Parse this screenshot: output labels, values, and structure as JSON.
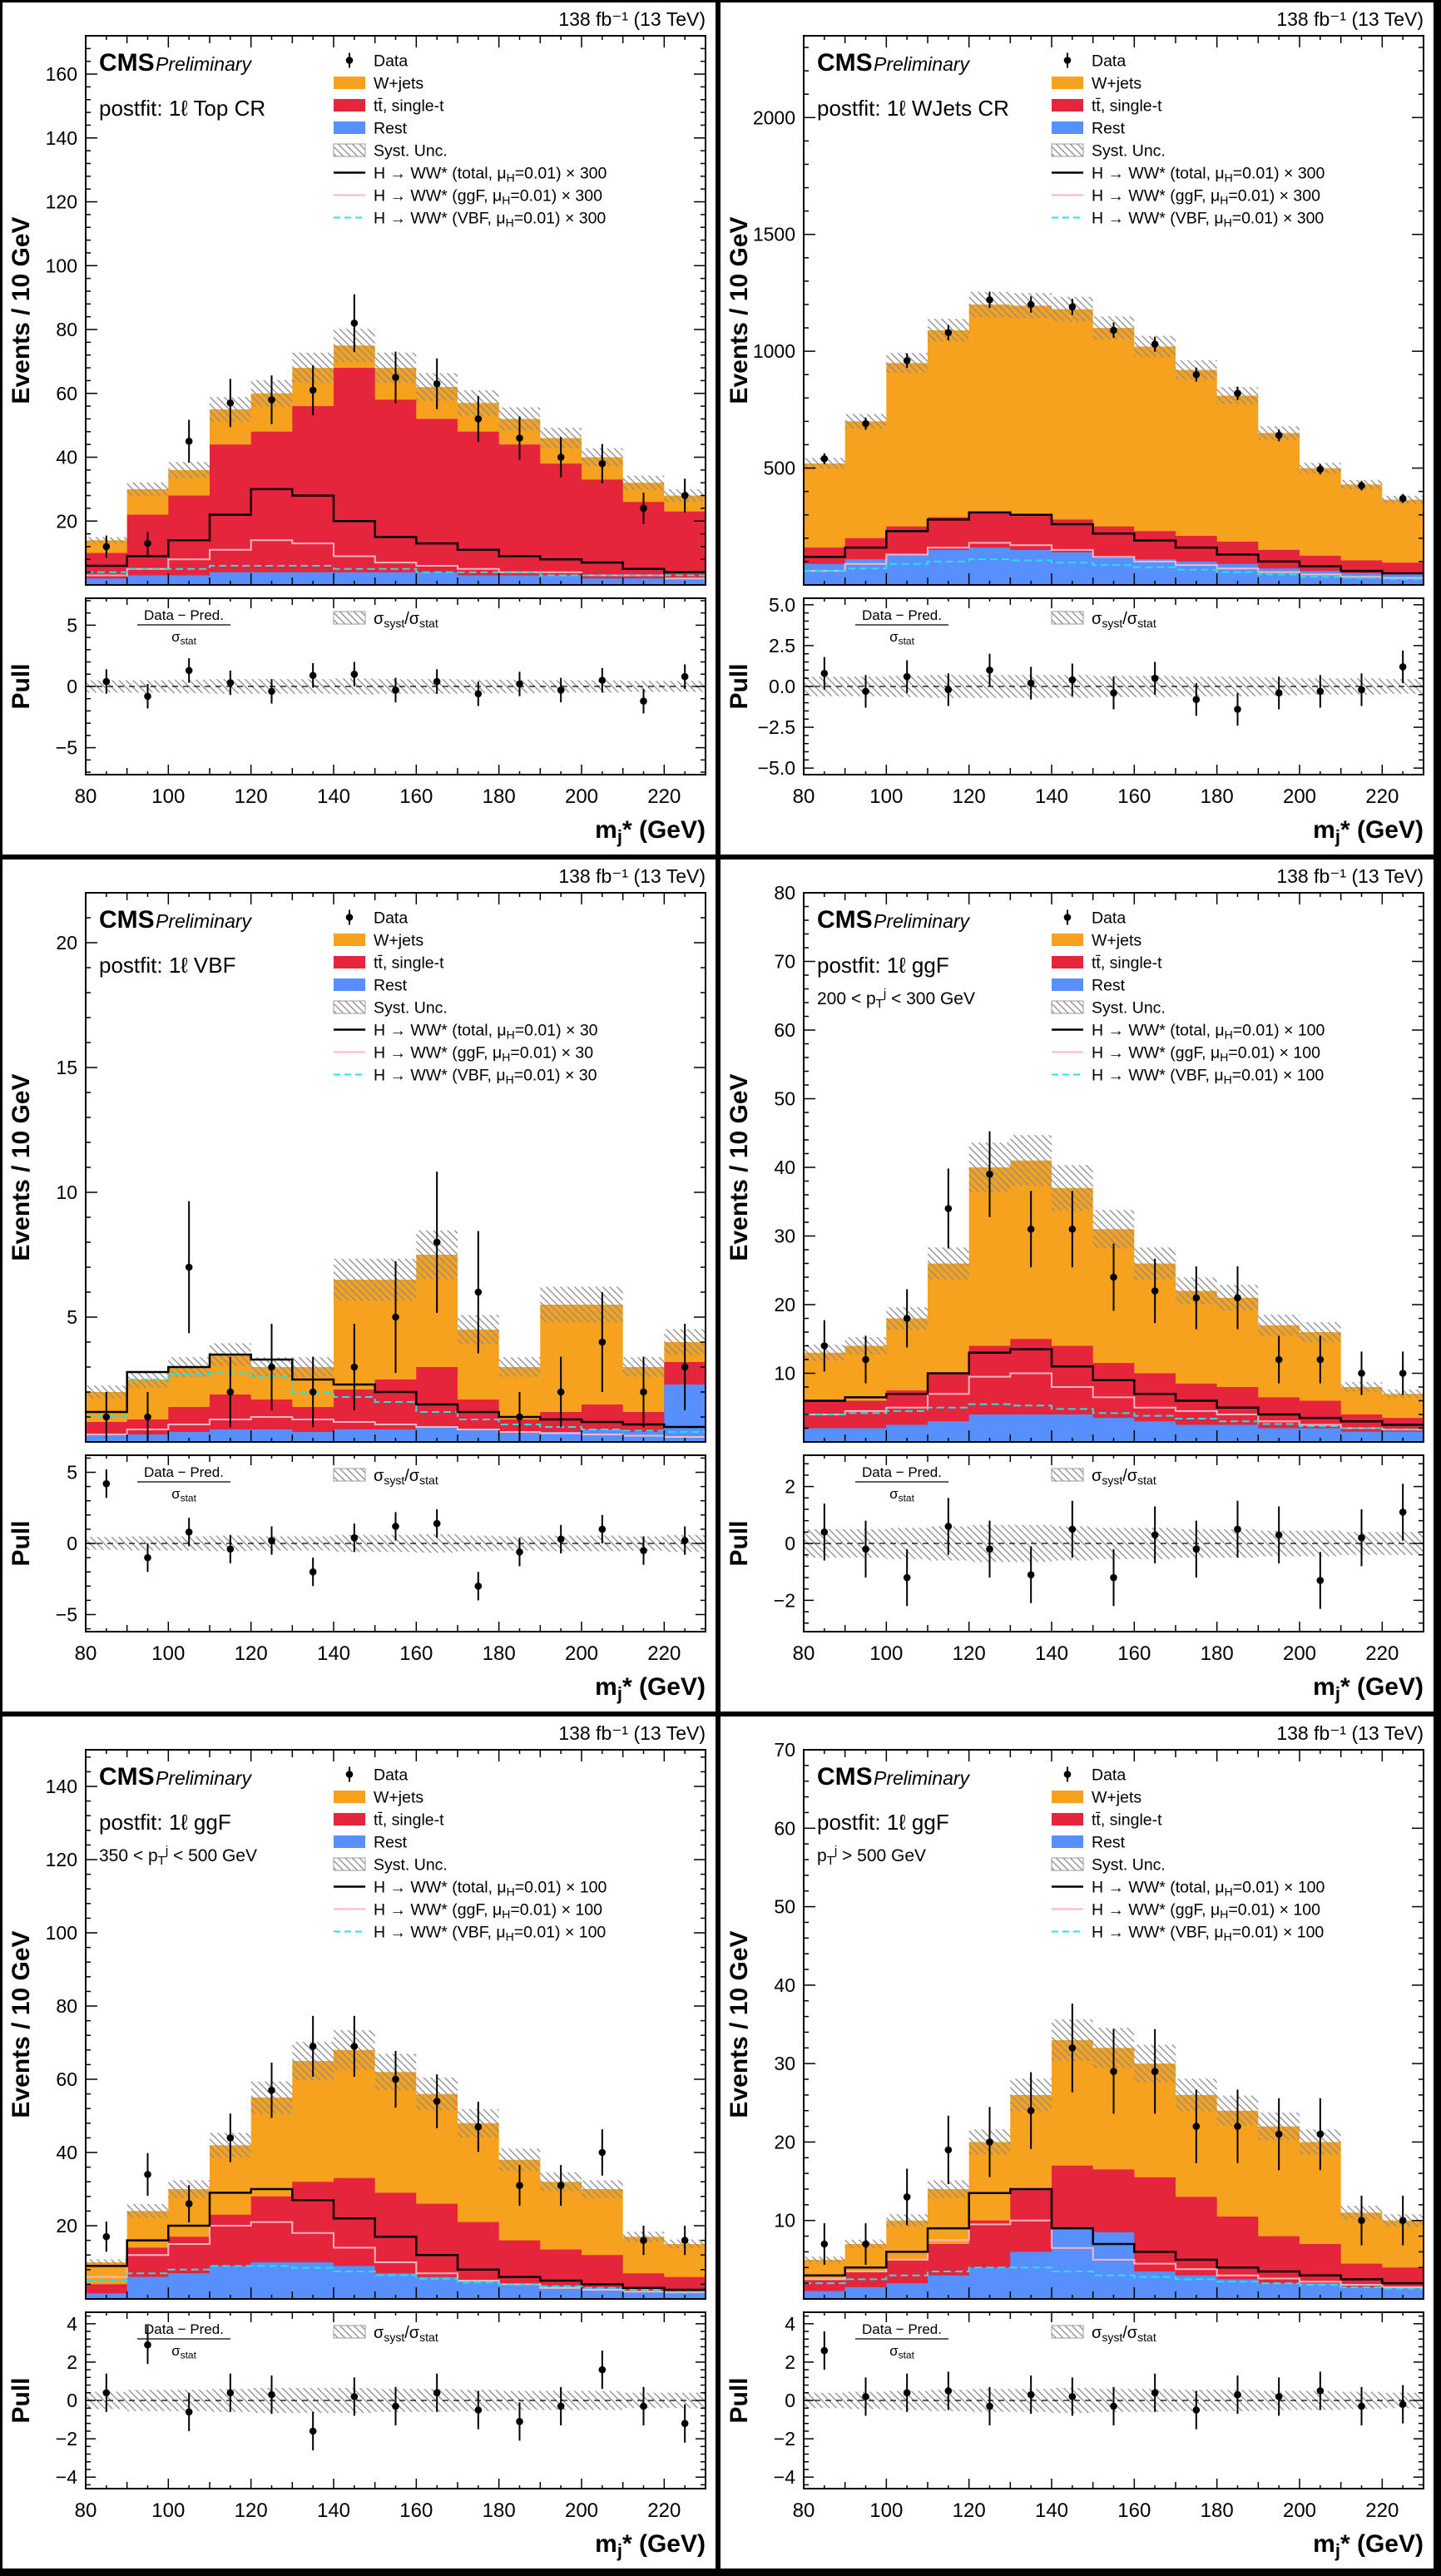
{
  "common": {
    "lumi": "138 fb⁻¹ (13 TeV)",
    "cms": "CMS",
    "preliminary": "Preliminary",
    "xlabel": "m~j~* (GeV)",
    "ylabel": "Events / 10 GeV",
    "pull_axis_label": "Pull",
    "pull_formula_numerator": "Data − Pred.",
    "pull_formula_denominator": "σ~stat~",
    "pull_band_label": "σ~syst~/σ~stat~",
    "legend_labels": {
      "data": "Data",
      "wjets": "W+jets",
      "top": "tt̄, single-t",
      "rest": "Rest",
      "syst": "Syst. Unc."
    },
    "colors": {
      "wjets": "#F7A21F",
      "top": "#E4253C",
      "rest": "#5790FC",
      "signal_total": "#000000",
      "signal_ggf": "#FFB5C2",
      "signal_vbf": "#24E3E3",
      "hatch": "#8A8A8A"
    },
    "x": {
      "min": 80,
      "max": 230,
      "bin_width": 10,
      "ticks": [
        80,
        100,
        120,
        140,
        160,
        180,
        200,
        220
      ]
    }
  },
  "chart_data": [
    {
      "type": "stacked-histogram-with-pull",
      "region_label": "postfit: 1ℓ Top CR",
      "sub_label": "",
      "ylim": [
        0,
        172
      ],
      "yticks": [
        20,
        40,
        60,
        80,
        100,
        120,
        140,
        160
      ],
      "pull_ylim": [
        -7.2,
        7.2
      ],
      "pull_yticks": [
        {
          "v": -5,
          "l": "−5"
        },
        {
          "v": 0,
          "l": "0"
        },
        {
          "v": 5,
          "l": "5"
        }
      ],
      "syst_frac": 0.07,
      "signal_legend": [
        "H → WW* (total, μ~H~=0.01) × 300",
        "H → WW* (ggF, μ~H~=0.01) × 300",
        "H → WW* (VBF, μ~H~=0.01) × 300"
      ],
      "stack": {
        "rest": [
          2,
          3,
          3,
          4,
          4,
          4,
          4,
          4,
          4,
          3,
          3,
          3,
          2,
          2,
          2
        ],
        "top": [
          8,
          19,
          25,
          40,
          44,
          52,
          64,
          54,
          48,
          45,
          41,
          35,
          31,
          24,
          21
        ],
        "wjets": [
          4,
          8,
          8,
          11,
          12,
          12,
          7,
          10,
          10,
          9,
          8,
          8,
          7,
          6,
          5
        ]
      },
      "signals": {
        "total": [
          6,
          9,
          14,
          22,
          30,
          28,
          20,
          15,
          13,
          11,
          9,
          8,
          7,
          5,
          4
        ],
        "ggf": [
          3,
          5,
          8,
          11,
          14,
          13,
          9,
          7,
          6,
          5,
          4,
          4,
          3,
          3,
          2
        ],
        "vbf": [
          4,
          5,
          5,
          6,
          6,
          6,
          5,
          5,
          4,
          4,
          4,
          3,
          3,
          3,
          3
        ]
      },
      "data_points": [
        12,
        13,
        45,
        57,
        58,
        61,
        82,
        65,
        63,
        52,
        46,
        40,
        38,
        24,
        28
      ],
      "pull": [
        0.4,
        -0.8,
        1.3,
        0.3,
        -0.4,
        0.9,
        1.0,
        -0.3,
        0.4,
        -0.6,
        0.2,
        -0.3,
        0.5,
        -1.2,
        0.8
      ],
      "pull_band": [
        0.5,
        0.5,
        0.55,
        0.6,
        0.6,
        0.6,
        0.65,
        0.6,
        0.6,
        0.55,
        0.55,
        0.5,
        0.5,
        0.45,
        0.45
      ]
    },
    {
      "type": "stacked-histogram-with-pull",
      "region_label": "postfit: 1ℓ WJets CR",
      "sub_label": "",
      "ylim": [
        0,
        2350
      ],
      "yticks": [
        500,
        1000,
        1500,
        2000
      ],
      "pull_ylim": [
        -5.4,
        5.4
      ],
      "pull_yticks": [
        {
          "v": -5,
          "l": "−5.0"
        },
        {
          "v": -2.5,
          "l": "−2.5"
        },
        {
          "v": 0,
          "l": "0.0"
        },
        {
          "v": 2.5,
          "l": "2.5"
        },
        {
          "v": 5,
          "l": "5.0"
        }
      ],
      "syst_frac": 0.045,
      "signal_legend": [
        "H → WW* (total, μ~H~=0.01) × 300",
        "H → WW* (ggF, μ~H~=0.01) × 300",
        "H → WW* (VBF, μ~H~=0.01) × 300"
      ],
      "stack": {
        "rest": [
          90,
          110,
          130,
          150,
          160,
          150,
          140,
          120,
          110,
          100,
          90,
          70,
          60,
          50,
          45
        ],
        "top": [
          70,
          90,
          120,
          140,
          150,
          145,
          140,
          130,
          120,
          110,
          95,
          80,
          65,
          55,
          50
        ],
        "wjets": [
          360,
          500,
          700,
          800,
          890,
          900,
          900,
          850,
          790,
          710,
          625,
          500,
          375,
          325,
          270
        ]
      },
      "signals": {
        "total": [
          120,
          160,
          230,
          280,
          310,
          300,
          260,
          220,
          190,
          160,
          130,
          100,
          80,
          60,
          50
        ],
        "ggf": [
          60,
          90,
          130,
          160,
          180,
          170,
          150,
          120,
          100,
          85,
          70,
          55,
          45,
          35,
          30
        ],
        "vbf": [
          60,
          70,
          90,
          100,
          110,
          105,
          95,
          85,
          75,
          65,
          55,
          45,
          35,
          30,
          25
        ]
      },
      "data_points": [
        540,
        690,
        960,
        1080,
        1220,
        1200,
        1190,
        1090,
        1030,
        900,
        820,
        640,
        495,
        425,
        370
      ],
      "pull": [
        0.8,
        -0.3,
        0.6,
        -0.2,
        1.0,
        0.2,
        0.4,
        -0.4,
        0.5,
        -0.8,
        -1.4,
        -0.4,
        -0.3,
        -0.2,
        1.2
      ],
      "pull_band": [
        0.6,
        0.6,
        0.65,
        0.7,
        0.7,
        0.7,
        0.7,
        0.65,
        0.65,
        0.6,
        0.6,
        0.55,
        0.5,
        0.5,
        0.45
      ]
    },
    {
      "type": "stacked-histogram-with-pull",
      "region_label": "postfit: 1ℓ VBF",
      "sub_label": "",
      "ylim": [
        0,
        22
      ],
      "yticks": [
        5,
        10,
        15,
        20
      ],
      "pull_ylim": [
        -6.2,
        6.2
      ],
      "pull_yticks": [
        {
          "v": -5,
          "l": "−5"
        },
        {
          "v": 0,
          "l": "0"
        },
        {
          "v": 5,
          "l": "5"
        }
      ],
      "syst_frac": 0.13,
      "signal_legend": [
        "H → WW* (total, μ~H~=0.01) × 30",
        "H → WW* (ggF, μ~H~=0.01) × 30",
        "H → WW* (VBF, μ~H~=0.01) × 30"
      ],
      "stack": {
        "rest": [
          0.3,
          0.3,
          0.4,
          0.5,
          0.5,
          0.4,
          0.5,
          0.5,
          0.6,
          0.5,
          0.4,
          0.4,
          0.5,
          0.4,
          2.3
        ],
        "top": [
          0.5,
          0.6,
          1.0,
          1.4,
          1.2,
          1.0,
          1.6,
          2.0,
          2.4,
          1.2,
          0.5,
          0.8,
          1.0,
          0.8,
          0.9
        ],
        "wjets": [
          1.2,
          1.6,
          1.6,
          1.6,
          1.3,
          1.6,
          4.4,
          4.0,
          4.5,
          2.8,
          2.1,
          4.3,
          4.0,
          1.8,
          0.8
        ]
      },
      "signals": {
        "total": [
          1.2,
          2.8,
          3.0,
          3.5,
          3.3,
          2.5,
          2.3,
          2.0,
          1.5,
          1.2,
          1.0,
          0.9,
          0.8,
          0.7,
          0.6
        ],
        "ggf": [
          0.3,
          0.5,
          0.7,
          0.9,
          1.0,
          0.9,
          0.8,
          0.7,
          0.6,
          0.5,
          0.4,
          0.35,
          0.3,
          0.25,
          0.2
        ],
        "vbf": [
          1.0,
          2.5,
          2.7,
          2.8,
          2.6,
          2.0,
          1.8,
          1.6,
          1.2,
          0.9,
          0.7,
          0.6,
          0.5,
          0.45,
          0.4
        ]
      },
      "data_points": [
        1,
        1,
        7,
        2,
        3,
        2,
        3,
        5,
        8,
        6,
        1,
        2,
        4,
        2,
        3
      ],
      "pull": [
        4.2,
        -1.0,
        0.8,
        -0.4,
        0.2,
        -2.0,
        0.4,
        1.2,
        1.4,
        -3.0,
        -0.6,
        0.3,
        1.0,
        -0.5,
        0.2
      ],
      "pull_band": [
        0.45,
        0.5,
        0.5,
        0.55,
        0.5,
        0.5,
        0.6,
        0.6,
        0.65,
        0.55,
        0.5,
        0.55,
        0.55,
        0.5,
        0.6
      ]
    },
    {
      "type": "stacked-histogram-with-pull",
      "region_label": "postfit: 1ℓ ggF",
      "sub_label": "200 < p~T~^j^ < 300 GeV",
      "ylim": [
        0,
        80
      ],
      "yticks": [
        10,
        20,
        30,
        40,
        50,
        60,
        70,
        80
      ],
      "pull_ylim": [
        -3.1,
        3.1
      ],
      "pull_yticks": [
        {
          "v": -2,
          "l": "−2"
        },
        {
          "v": 0,
          "l": "0"
        },
        {
          "v": 2,
          "l": "2"
        }
      ],
      "syst_frac": 0.09,
      "signal_legend": [
        "H → WW* (total, μ~H~=0.01) × 100",
        "H → WW* (ggF, μ~H~=0.01) × 100",
        "H → WW* (VBF, μ~H~=0.01) × 100"
      ],
      "stack": {
        "rest": [
          2,
          2,
          2.5,
          3,
          4,
          4,
          4,
          3.5,
          3,
          2.5,
          2.5,
          2,
          2,
          1.5,
          1.5
        ],
        "top": [
          4,
          4,
          5,
          7,
          10,
          11,
          10,
          8,
          7,
          6,
          5.5,
          4.5,
          4,
          2.5,
          2
        ],
        "wjets": [
          7,
          8,
          10.5,
          16,
          26,
          26,
          23,
          19.5,
          16,
          13.5,
          13,
          10.5,
          10,
          4,
          3.5
        ]
      },
      "signals": {
        "total": [
          6,
          6.5,
          7,
          10,
          13,
          13.5,
          11,
          9,
          7,
          6,
          5,
          4,
          3.5,
          3,
          2.5
        ],
        "ggf": [
          4,
          4.5,
          5,
          7,
          9.5,
          10,
          8,
          6.5,
          5,
          4.5,
          4,
          3,
          2.5,
          2,
          1.8
        ],
        "vbf": [
          4,
          4.2,
          4.5,
          5,
          5.5,
          5.3,
          4.8,
          4.2,
          3.8,
          3.4,
          3,
          2.6,
          2.3,
          2,
          1.8
        ]
      },
      "data_points": [
        14,
        12,
        18,
        34,
        39,
        31,
        31,
        24,
        22,
        21,
        21,
        12,
        12,
        10,
        10
      ],
      "pull": [
        0.4,
        -0.2,
        -1.2,
        0.6,
        -0.2,
        -1.1,
        0.5,
        -1.2,
        0.3,
        -0.2,
        0.5,
        0.3,
        -1.3,
        0.2,
        1.1
      ],
      "pull_band": [
        0.5,
        0.5,
        0.55,
        0.6,
        0.65,
        0.65,
        0.6,
        0.55,
        0.55,
        0.5,
        0.5,
        0.45,
        0.45,
        0.4,
        0.4
      ]
    },
    {
      "type": "stacked-histogram-with-pull",
      "region_label": "postfit: 1ℓ ggF",
      "sub_label": "350 < p~T~^j^ < 500 GeV",
      "ylim": [
        0,
        150
      ],
      "yticks": [
        20,
        40,
        60,
        80,
        100,
        120,
        140
      ],
      "pull_ylim": [
        -4.6,
        4.6
      ],
      "pull_yticks": [
        {
          "v": -4,
          "l": "−4"
        },
        {
          "v": -2,
          "l": "−2"
        },
        {
          "v": 0,
          "l": "0"
        },
        {
          "v": 2,
          "l": "2"
        },
        {
          "v": 4,
          "l": "4"
        }
      ],
      "syst_frac": 0.08,
      "signal_legend": [
        "H → WW* (total, μ~H~=0.01) × 100",
        "H → WW* (ggF, μ~H~=0.01) × 100",
        "H → WW* (VBF, μ~H~=0.01) × 100"
      ],
      "stack": {
        "rest": [
          1.5,
          6,
          7,
          9,
          10,
          10,
          9,
          7,
          6,
          5,
          4,
          3.5,
          3,
          2,
          2
        ],
        "top": [
          2.5,
          8,
          10,
          14,
          18,
          22,
          24,
          22,
          20,
          16,
          12,
          10,
          9,
          5,
          4
        ],
        "wjets": [
          6,
          10,
          13,
          19,
          27,
          33,
          35,
          33,
          30,
          27,
          22,
          18.5,
          18,
          10,
          9
        ]
      },
      "signals": {
        "total": [
          9,
          16,
          20,
          29,
          30,
          27,
          22,
          17,
          12,
          8,
          6,
          5,
          4,
          3,
          2.5
        ],
        "ggf": [
          6,
          12,
          15,
          20,
          21,
          18,
          14,
          10,
          7,
          5,
          4,
          3,
          2.5,
          2,
          1.8
        ],
        "vbf": [
          5,
          7,
          8,
          9,
          9,
          8.5,
          7.5,
          6.5,
          5.5,
          4.5,
          4,
          3.5,
          3,
          2.5,
          2
        ]
      },
      "data_points": [
        17,
        34,
        26,
        44,
        57,
        69,
        69,
        60,
        54,
        47,
        31,
        31,
        40,
        16,
        16
      ],
      "pull": [
        0.4,
        2.9,
        -0.6,
        0.4,
        0.3,
        -1.6,
        0.2,
        -0.3,
        0.4,
        -0.5,
        -1.1,
        -0.3,
        1.6,
        -0.3,
        -1.2
      ],
      "pull_band": [
        0.45,
        0.55,
        0.55,
        0.6,
        0.65,
        0.65,
        0.65,
        0.6,
        0.6,
        0.55,
        0.5,
        0.5,
        0.5,
        0.4,
        0.4
      ]
    },
    {
      "type": "stacked-histogram-with-pull",
      "region_label": "postfit: 1ℓ ggF",
      "sub_label": "p~T~^j^ > 500 GeV",
      "ylim": [
        0,
        70
      ],
      "yticks": [
        10,
        20,
        30,
        40,
        50,
        60,
        70
      ],
      "pull_ylim": [
        -4.6,
        4.6
      ],
      "pull_yticks": [
        {
          "v": -4,
          "l": "−4"
        },
        {
          "v": -2,
          "l": "−2"
        },
        {
          "v": 0,
          "l": "0"
        },
        {
          "v": 2,
          "l": "2"
        },
        {
          "v": 4,
          "l": "4"
        }
      ],
      "syst_frac": 0.08,
      "signal_legend": [
        "H → WW* (total, μ~H~=0.01) × 100",
        "H → WW* (ggF, μ~H~=0.01) × 100",
        "H → WW* (VBF, μ~H~=0.01) × 100"
      ],
      "stack": {
        "rest": [
          1,
          1.5,
          2,
          3,
          4,
          6,
          9,
          8.5,
          3.5,
          3,
          2.5,
          2,
          2,
          1.5,
          1.5
        ],
        "top": [
          1.5,
          2,
          3,
          4,
          6,
          8,
          8,
          8,
          12,
          10,
          8,
          6,
          5,
          3,
          2.5
        ],
        "wjets": [
          2.5,
          3.5,
          5,
          7,
          10,
          12,
          16,
          15.5,
          14.5,
          13,
          13.5,
          14,
          13,
          6.5,
          6
        ]
      },
      "signals": {
        "total": [
          3,
          4,
          6,
          9,
          13.5,
          14,
          9,
          7,
          6,
          5,
          4,
          3.5,
          3,
          2.5,
          2
        ],
        "ggf": [
          2.5,
          3.5,
          5,
          7.5,
          9.5,
          10,
          6.5,
          5,
          4.5,
          3.8,
          3,
          2.6,
          2.2,
          1.8,
          1.5
        ],
        "vbf": [
          2,
          2.5,
          3,
          3.5,
          4,
          4,
          3.5,
          3,
          2.8,
          2.5,
          2.2,
          2,
          1.8,
          1.5,
          1.3
        ]
      },
      "data_points": [
        7,
        7,
        13,
        19,
        20,
        24,
        32,
        29,
        29,
        22,
        22,
        21,
        21,
        10,
        10
      ],
      "pull": [
        2.6,
        0.2,
        0.4,
        0.5,
        -0.3,
        0.3,
        0.2,
        -0.3,
        0.4,
        -0.5,
        0.3,
        0.2,
        0.5,
        -0.3,
        -0.2
      ],
      "pull_band": [
        0.4,
        0.45,
        0.5,
        0.55,
        0.6,
        0.6,
        0.65,
        0.6,
        0.6,
        0.55,
        0.55,
        0.5,
        0.5,
        0.45,
        0.4
      ]
    }
  ]
}
